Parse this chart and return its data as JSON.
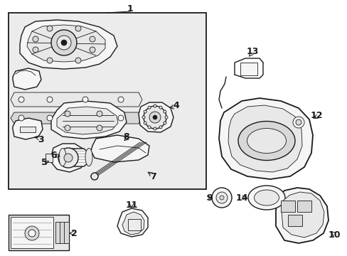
{
  "bg_color": "#ffffff",
  "line_color": "#1a1a1a",
  "fill_light": "#f5f5f5",
  "fill_gray": "#e8e8e8",
  "fill_mid": "#d8d8d8",
  "box_bg": "#ececec",
  "lw_main": 1.0,
  "lw_thin": 0.6,
  "lw_thick": 1.3,
  "figw": 4.89,
  "figh": 3.6,
  "dpi": 100
}
